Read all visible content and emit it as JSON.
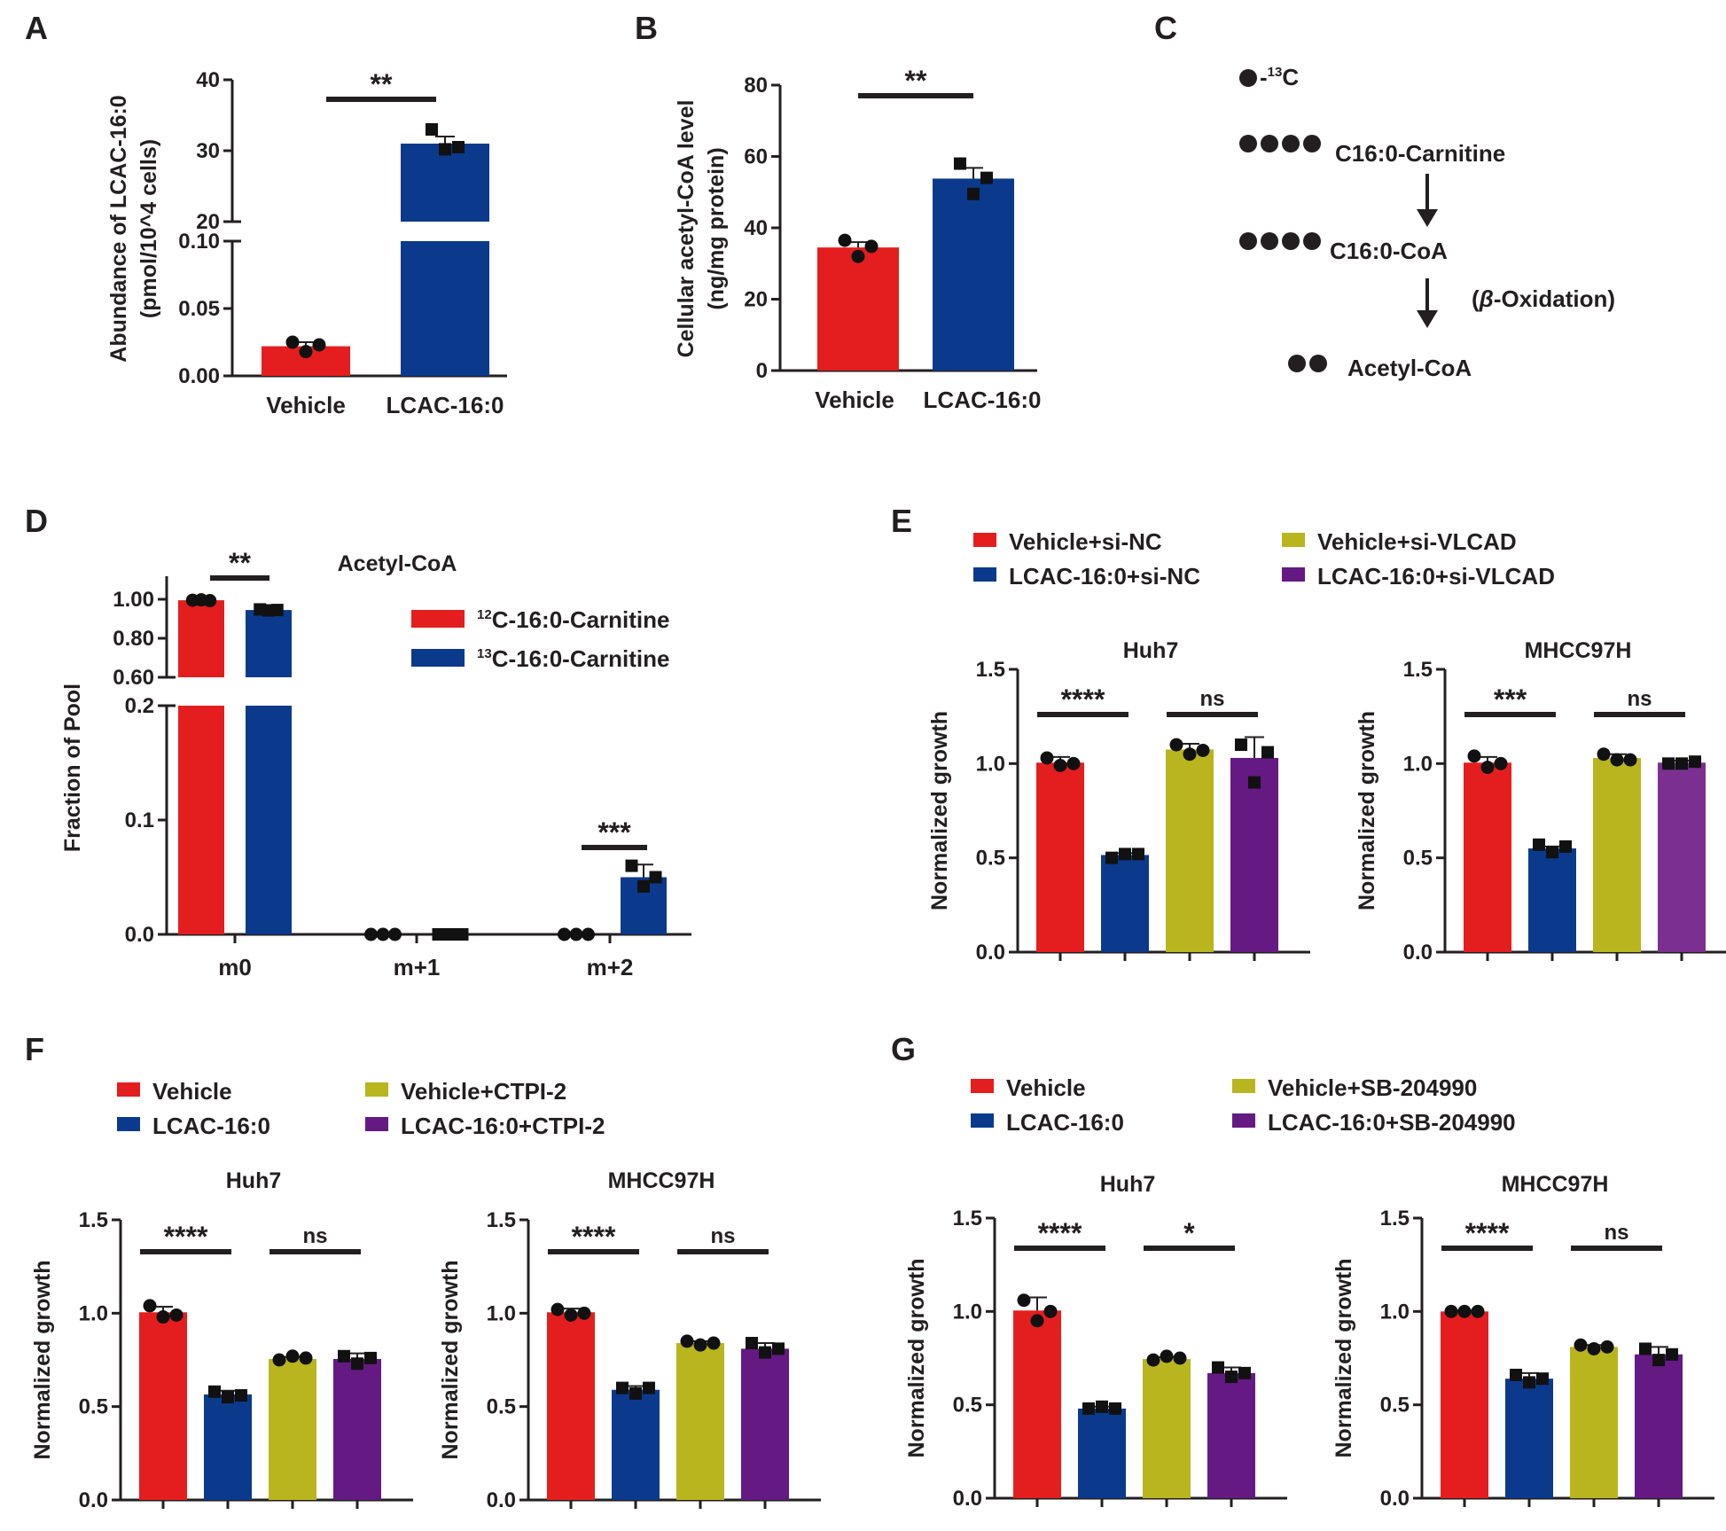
{
  "colors": {
    "red": "#e41e1e",
    "blue": "#0b3a8d",
    "olive": "#b8b51e",
    "purple": "#641a82",
    "purple_light": "#7b3091",
    "ink": "#231f20"
  },
  "panels": {
    "A": "A",
    "B": "B",
    "C": "C",
    "D": "D",
    "E": "E",
    "F": "F",
    "G": "G"
  },
  "chart_data": [
    {
      "id": "A",
      "type": "bar",
      "ylabel": [
        "Abundance of LCAC-16:0",
        "(pmol/10^4 cells)"
      ],
      "categories": [
        "Vehicle",
        "LCAC-16:0"
      ],
      "values": [
        0.022,
        31
      ],
      "errors": [
        0.003,
        1.0
      ],
      "points": [
        [
          0.025,
          0.018,
          0.023
        ],
        [
          33.0,
          30.2,
          30.5
        ]
      ],
      "broken_axis": {
        "lower": [
          0,
          0.1
        ],
        "upper": [
          20,
          40
        ]
      },
      "lower_ticks": [
        "0.00",
        "0.05",
        "0.10"
      ],
      "upper_ticks": [
        "20",
        "30",
        "40"
      ],
      "significance": [
        {
          "label": "**",
          "pair": [
            0,
            1
          ]
        }
      ]
    },
    {
      "id": "B",
      "type": "bar",
      "ylabel": [
        "Cellular acetyl-CoA level",
        "(ng/mg protein)"
      ],
      "categories": [
        "Vehicle",
        "LCAC-16:0"
      ],
      "values": [
        34.5,
        53.8
      ],
      "errors": [
        1.5,
        3.0
      ],
      "points": [
        [
          36.5,
          32.0,
          34.8
        ],
        [
          58.0,
          49.5,
          54.0
        ]
      ],
      "ylim": [
        0,
        80
      ],
      "ticks": [
        "0",
        "20",
        "40",
        "60",
        "80"
      ],
      "significance": [
        {
          "label": "**",
          "pair": [
            0,
            1
          ]
        }
      ]
    },
    {
      "id": "D",
      "type": "bar",
      "title": "Acetyl-CoA",
      "ylabel": "Fraction of Pool",
      "categories": [
        "m0",
        "m+1",
        "m+2"
      ],
      "series": [
        {
          "name": "C-16:0-Carnitine",
          "isotope": "12",
          "values": [
            0.995,
            0.0,
            0.0
          ],
          "errors": [
            0.003,
            0,
            0
          ],
          "points": [
            [
              0.995,
              0.997,
              0.993
            ],
            [
              0,
              0,
              0
            ],
            [
              0,
              0,
              0
            ]
          ]
        },
        {
          "name": "C-16:0-Carnitine",
          "isotope": "13",
          "values": [
            0.945,
            0.0,
            0.05
          ],
          "errors": [
            0.005,
            0,
            0.011
          ],
          "points": [
            [
              0.948,
              0.943,
              0.945
            ],
            [
              0,
              0,
              0
            ],
            [
              0.06,
              0.042,
              0.05
            ]
          ]
        }
      ],
      "broken_axis": {
        "lower": [
          0,
          0.2
        ],
        "upper": [
          0.6,
          1.0
        ]
      },
      "lower_ticks": [
        "0.0",
        "0.1",
        "0.2"
      ],
      "upper_ticks": [
        "0.60",
        "0.80",
        "1.00"
      ],
      "significance": [
        {
          "label": "**",
          "group": 0
        },
        {
          "label": "***",
          "group": 2
        }
      ]
    },
    {
      "id": "E",
      "type": "bar",
      "legend": [
        "Vehicle+si-NC",
        "LCAC-16:0+si-NC",
        "Vehicle+si-VLCAD",
        "LCAC-16:0+si-VLCAD"
      ],
      "subplots": [
        {
          "title": "Huh7",
          "ylabel": "Normalized growth",
          "ylim": [
            0,
            1.5
          ],
          "ticks": [
            "0.0",
            "0.5",
            "1.0",
            "1.5"
          ],
          "values": [
            1.005,
            0.515,
            1.075,
            1.03
          ],
          "errors": [
            0.03,
            0.01,
            0.03,
            0.11
          ],
          "points": [
            [
              1.03,
              0.99,
              1.0
            ],
            [
              0.5,
              0.52,
              0.52
            ],
            [
              1.1,
              1.05,
              1.07
            ],
            [
              1.1,
              0.9,
              1.06
            ]
          ],
          "significance": [
            {
              "label": "****",
              "pair": [
                0,
                1
              ]
            },
            {
              "label": "ns",
              "pair": [
                2,
                3
              ]
            }
          ]
        },
        {
          "title": "MHCC97H",
          "ylabel": "Normalized growth",
          "ylim": [
            0,
            1.5
          ],
          "ticks": [
            "0.0",
            "0.5",
            "1.0",
            "1.5"
          ],
          "values": [
            1.005,
            0.55,
            1.03,
            1.005
          ],
          "errors": [
            0.03,
            0.01,
            0.02,
            0.01
          ],
          "points": [
            [
              1.04,
              0.98,
              1.0
            ],
            [
              0.57,
              0.53,
              0.56
            ],
            [
              1.05,
              1.02,
              1.02
            ],
            [
              1.0,
              1.0,
              1.01
            ]
          ],
          "significance": [
            {
              "label": "***",
              "pair": [
                0,
                1
              ]
            },
            {
              "label": "ns",
              "pair": [
                2,
                3
              ]
            }
          ]
        }
      ]
    },
    {
      "id": "F",
      "type": "bar",
      "legend": [
        "Vehicle",
        "LCAC-16:0",
        "Vehicle+CTPI-2",
        "LCAC-16:0+CTPI-2"
      ],
      "subplots": [
        {
          "title": "Huh7",
          "ylabel": "Normalized growth",
          "ylim": [
            0,
            1.5
          ],
          "ticks": [
            "0.0",
            "0.5",
            "1.0",
            "1.5"
          ],
          "values": [
            1.005,
            0.565,
            0.755,
            0.755
          ],
          "errors": [
            0.03,
            0.02,
            0.01,
            0.03
          ],
          "points": [
            [
              1.04,
              0.98,
              0.99
            ],
            [
              0.58,
              0.55,
              0.56
            ],
            [
              0.75,
              0.77,
              0.76
            ],
            [
              0.77,
              0.73,
              0.76
            ]
          ],
          "significance": [
            {
              "label": "****",
              "pair": [
                0,
                1
              ]
            },
            {
              "label": "ns",
              "pair": [
                2,
                3
              ]
            }
          ]
        },
        {
          "title": "MHCC97H",
          "ylabel": "Normalized growth",
          "ylim": [
            0,
            1.5
          ],
          "ticks": [
            "0.0",
            "0.5",
            "1.0",
            "1.5"
          ],
          "values": [
            1.005,
            0.59,
            0.84,
            0.81
          ],
          "errors": [
            0.02,
            0.02,
            0.01,
            0.03
          ],
          "points": [
            [
              1.02,
              0.99,
              1.0
            ],
            [
              0.6,
              0.57,
              0.6
            ],
            [
              0.85,
              0.83,
              0.84
            ],
            [
              0.84,
              0.79,
              0.81
            ]
          ],
          "significance": [
            {
              "label": "****",
              "pair": [
                0,
                1
              ]
            },
            {
              "label": "ns",
              "pair": [
                2,
                3
              ]
            }
          ]
        }
      ]
    },
    {
      "id": "G",
      "type": "bar",
      "legend": [
        "Vehicle",
        "LCAC-16:0",
        "Vehicle+SB-204990",
        "LCAC-16:0+SB-204990"
      ],
      "subplots": [
        {
          "title": "Huh7",
          "ylabel": "Normalized growth",
          "ylim": [
            0,
            1.5
          ],
          "ticks": [
            "0.0",
            "0.5",
            "1.0",
            "1.5"
          ],
          "values": [
            1.005,
            0.48,
            0.745,
            0.67
          ],
          "errors": [
            0.07,
            0.01,
            0.01,
            0.03
          ],
          "points": [
            [
              1.06,
              0.95,
              1.0
            ],
            [
              0.48,
              0.49,
              0.48
            ],
            [
              0.74,
              0.76,
              0.75
            ],
            [
              0.7,
              0.65,
              0.67
            ]
          ],
          "significance": [
            {
              "label": "****",
              "pair": [
                0,
                1
              ]
            },
            {
              "label": "*",
              "pair": [
                2,
                3
              ]
            }
          ]
        },
        {
          "title": "MHCC97H",
          "ylabel": "Normalized growth",
          "ylim": [
            0,
            1.5
          ],
          "ticks": [
            "0.0",
            "0.5",
            "1.0",
            "1.5"
          ],
          "values": [
            1.0,
            0.64,
            0.81,
            0.77
          ],
          "errors": [
            0.005,
            0.03,
            0.01,
            0.04
          ],
          "points": [
            [
              1.0,
              1.0,
              1.0
            ],
            [
              0.66,
              0.62,
              0.64
            ],
            [
              0.82,
              0.8,
              0.81
            ],
            [
              0.8,
              0.74,
              0.77
            ]
          ],
          "significance": [
            {
              "label": "****",
              "pair": [
                0,
                1
              ]
            },
            {
              "label": "ns",
              "pair": [
                2,
                3
              ]
            }
          ]
        }
      ]
    }
  ],
  "pathway": {
    "legend_label": "-",
    "legend_iso": "13",
    "legend_el": "C",
    "steps": [
      "C16:0-Carnitine",
      "C16:0-CoA",
      "Acetyl-CoA"
    ],
    "step_note": "(",
    "beta": "β",
    "step_note_rest": "-Oxidation)"
  }
}
